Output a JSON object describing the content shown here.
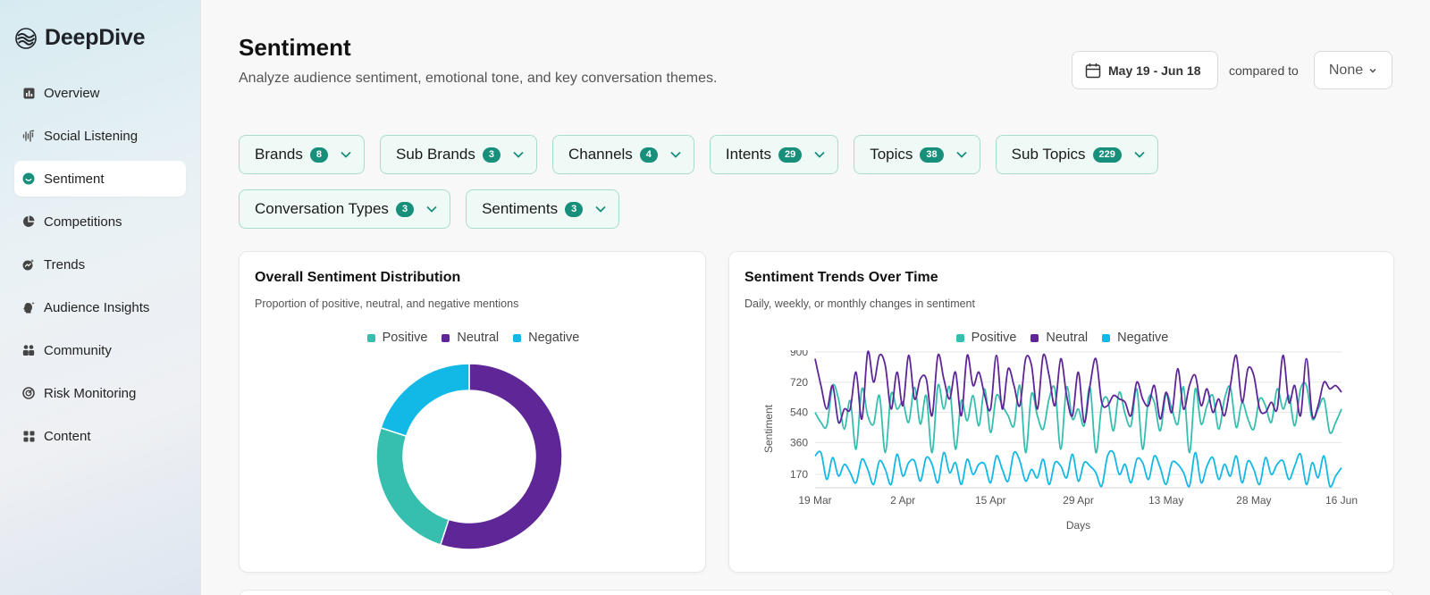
{
  "app": {
    "name": "DeepDive"
  },
  "sidebar": {
    "items": [
      {
        "label": "Overview",
        "icon": "bar-chart-icon",
        "active": false
      },
      {
        "label": "Social Listening",
        "icon": "audio-waves-icon",
        "active": false
      },
      {
        "label": "Sentiment",
        "icon": "smile-icon",
        "active": true
      },
      {
        "label": "Competitions",
        "icon": "pie-chart-icon",
        "active": false
      },
      {
        "label": "Trends",
        "icon": "trend-icon",
        "active": false
      },
      {
        "label": "Audience Insights",
        "icon": "user-insight-icon",
        "active": false
      },
      {
        "label": "Community",
        "icon": "people-icon",
        "active": false
      },
      {
        "label": "Risk Monitoring",
        "icon": "risk-icon",
        "active": false
      },
      {
        "label": "Content",
        "icon": "grid-icon",
        "active": false
      }
    ]
  },
  "header": {
    "title": "Sentiment",
    "subtitle": "Analyze audience sentiment, emotional tone, and key conversation themes.",
    "date_range": "May 19 - Jun 18",
    "compared_label": "compared to",
    "compared_value": "None"
  },
  "filters": [
    {
      "label": "Brands",
      "count": "8"
    },
    {
      "label": "Sub Brands",
      "count": "3"
    },
    {
      "label": "Channels",
      "count": "4"
    },
    {
      "label": "Intents",
      "count": "29"
    },
    {
      "label": "Topics",
      "count": "38"
    },
    {
      "label": "Sub Topics",
      "count": "229"
    },
    {
      "label": "Conversation Types",
      "count": "3"
    },
    {
      "label": "Sentiments",
      "count": "3"
    }
  ],
  "colors": {
    "positive": "#36bfae",
    "neutral": "#5e2696",
    "negative": "#12b8e6",
    "accent": "#178f7a"
  },
  "distribution_card": {
    "title": "Overall Sentiment Distribution",
    "subtitle": "Proportion of positive, neutral, and negative mentions"
  },
  "trends_card": {
    "title": "Sentiment Trends Over Time",
    "subtitle": "Daily, weekly, or monthly changes in sentiment"
  },
  "chart_data": [
    {
      "type": "pie",
      "donut": true,
      "title": "Overall Sentiment Distribution",
      "legend": [
        "Positive",
        "Neutral",
        "Negative"
      ],
      "legend_position": "top-center",
      "labels": [
        "Neutral",
        "Positive",
        "Negative"
      ],
      "values": [
        55,
        25,
        20
      ]
    },
    {
      "type": "line",
      "title": "Sentiment Trends Over Time",
      "xlabel": "Days",
      "ylabel": "Sentiment",
      "x_range": [
        "2025-03-19",
        "2025-06-16"
      ],
      "x_ticks": [
        "19 Mar",
        "2 Apr",
        "15 Apr",
        "29 Apr",
        "13 May",
        "28 May",
        "16 Jun"
      ],
      "y_ticks": [
        170,
        360,
        540,
        720,
        900
      ],
      "ylim": [
        90,
        900
      ],
      "grid": true,
      "legend_position": "top-center",
      "series": [
        {
          "name": "Positive",
          "values": [
            540,
            480,
            460,
            700,
            620,
            440,
            610,
            320,
            680,
            520,
            470,
            640,
            300,
            650,
            560,
            600,
            480,
            690,
            470,
            640,
            300,
            700,
            560,
            690,
            320,
            610,
            490,
            640,
            460,
            680,
            420,
            640,
            580,
            520,
            460,
            700,
            300,
            650,
            520,
            440,
            620,
            680,
            320,
            690,
            500,
            560,
            460,
            690,
            300,
            580,
            620,
            430,
            660,
            530,
            460,
            680,
            320,
            620,
            600,
            430,
            650,
            560,
            470,
            690,
            300,
            680,
            470,
            580,
            640,
            440,
            620,
            690,
            450,
            600,
            500,
            440,
            620,
            580,
            480,
            680,
            560,
            640,
            460,
            680,
            700,
            500,
            560,
            620,
            420,
            480,
            560
          ]
        },
        {
          "name": "Neutral",
          "values": [
            860,
            700,
            560,
            700,
            480,
            560,
            560,
            780,
            500,
            900,
            720,
            880,
            820,
            560,
            780,
            580,
            880,
            620,
            740,
            740,
            520,
            880,
            740,
            620,
            780,
            520,
            880,
            700,
            780,
            640,
            560,
            880,
            560,
            800,
            700,
            580,
            860,
            820,
            560,
            880,
            760,
            580,
            860,
            640,
            520,
            780,
            480,
            700,
            860,
            600,
            580,
            640,
            620,
            600,
            520,
            720,
            620,
            580,
            700,
            500,
            660,
            540,
            800,
            560,
            700,
            760,
            580,
            680,
            540,
            620,
            520,
            700,
            880,
            600,
            800,
            760,
            560,
            540,
            600,
            560,
            880,
            600,
            700,
            520,
            860,
            520,
            580,
            720,
            680,
            700,
            660
          ]
        },
        {
          "name": "Negative",
          "values": [
            280,
            300,
            140,
            270,
            160,
            230,
            180,
            120,
            260,
            200,
            110,
            250,
            200,
            110,
            290,
            160,
            240,
            250,
            130,
            270,
            230,
            120,
            300,
            180,
            240,
            110,
            260,
            170,
            230,
            230,
            120,
            280,
            200,
            130,
            300,
            250,
            130,
            200,
            150,
            260,
            110,
            240,
            220,
            150,
            290,
            130,
            240,
            220,
            180,
            100,
            280,
            300,
            170,
            230,
            120,
            260,
            240,
            140,
            280,
            210,
            110,
            240,
            230,
            180,
            100,
            300,
            120,
            220,
            270,
            140,
            230,
            160,
            280,
            120,
            250,
            200,
            110,
            270,
            170,
            230,
            250,
            140,
            220,
            290,
            110,
            240,
            150,
            280,
            100,
            160,
            210
          ]
        }
      ]
    }
  ]
}
